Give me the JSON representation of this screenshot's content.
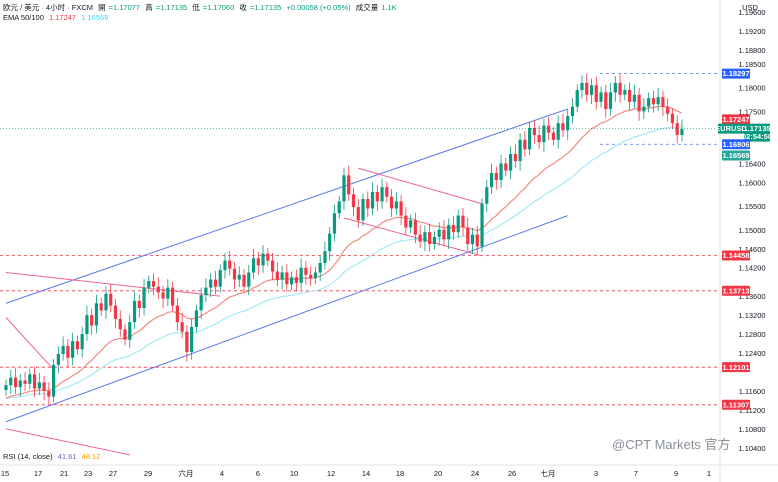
{
  "header": {
    "line1": {
      "symbol": "欧元 / 美元 · 4小时 · FXCM",
      "open_label": "開",
      "open": "=1.17077",
      "high_label": "高",
      "high": "=1.17135",
      "low_label": "低",
      "low": "=1.17060",
      "close_label": "收",
      "close": "=1.17135",
      "change": "+0.00058 (+0.05%)",
      "volume_label": "成交量",
      "volume": "1.1K"
    },
    "line2": {
      "name": "EMA 50/100",
      "ema50": "1.17247",
      "ema100": "1.16569"
    }
  },
  "currency": "USD",
  "rsi_label": {
    "name": "RSI (14, close)",
    "v1": "41.61",
    "v2": "48.12"
  },
  "watermark": "@CPT Markets 官方",
  "colors": {
    "up": "#089981",
    "down": "#f23645",
    "ema50": "#f28b82",
    "ema100": "#a5e9f5",
    "channel": "#5b78e8",
    "down_channel": "#f06292",
    "blue_tag": "#2962ff",
    "red_tag": "#f23645"
  },
  "chart_data": {
    "type": "candlestick",
    "symbol": "EURUSD",
    "timeframe": "4H",
    "ylim": [
      1.101,
      1.1985
    ],
    "y_ticks": [
      "1.19600",
      "1.19200",
      "1.18800",
      "1.18500",
      "1.18000",
      "1.17500",
      "1.16400",
      "1.16000",
      "1.15500",
      "1.15000",
      "1.14600",
      "1.14200",
      "1.13600",
      "1.13200",
      "1.12800",
      "1.12400",
      "1.11600",
      "1.11200",
      "1.10800",
      "1.10400"
    ],
    "x_ticks": [
      "15",
      "17",
      "21",
      "23",
      "27",
      "29",
      "六月",
      "4",
      "6",
      "10",
      "12",
      "14",
      "18",
      "20",
      "24",
      "26",
      "七月",
      "3",
      "7",
      "9",
      "1"
    ],
    "price_tags": [
      {
        "label": "1.18297",
        "value": 1.18297,
        "color": "blue"
      },
      {
        "label": "1.17247",
        "value": 1.17247,
        "color": "red"
      },
      {
        "label": "EURUSD",
        "value": 1.17135,
        "color": "green"
      },
      {
        "label": "1.17135",
        "value": 1.17135,
        "color": "green"
      },
      {
        "label": "02:54:50",
        "value": 1.1699,
        "color": "green"
      },
      {
        "label": "1.16806",
        "value": 1.16806,
        "color": "blue"
      },
      {
        "label": "1.16569",
        "value": 1.16569,
        "color": "teal"
      },
      {
        "label": "1.14458",
        "value": 1.14458,
        "color": "red"
      },
      {
        "label": "1.13713",
        "value": 1.13713,
        "color": "red"
      },
      {
        "label": "1.12101",
        "value": 1.12101,
        "color": "red"
      },
      {
        "label": "1.11307",
        "value": 1.11307,
        "color": "red"
      }
    ],
    "horizontal_levels": [
      {
        "value": 1.18297,
        "color": "blue"
      },
      {
        "value": 1.16806,
        "color": "blue"
      },
      {
        "value": 1.14458,
        "color": "red"
      },
      {
        "value": 1.13713,
        "color": "red"
      },
      {
        "value": 1.12101,
        "color": "red"
      },
      {
        "value": 1.11307,
        "color": "red"
      }
    ],
    "trendlines": [
      {
        "name": "channel-upper",
        "color": "blue",
        "points": [
          [
            0,
            1.1345
          ],
          [
            118,
            1.1755
          ]
        ]
      },
      {
        "name": "channel-lower",
        "color": "blue",
        "points": [
          [
            0,
            1.1095
          ],
          [
            118,
            1.153
          ]
        ]
      },
      {
        "name": "resistance-a",
        "color": "red",
        "points": [
          [
            0,
            1.141
          ],
          [
            45,
            1.136
          ]
        ]
      },
      {
        "name": "resistance-b",
        "color": "red",
        "points": [
          [
            0,
            1.1315
          ],
          [
            10,
            1.1205
          ]
        ]
      },
      {
        "name": "resistance-c",
        "color": "red",
        "points": [
          [
            0,
            1.108
          ],
          [
            26,
            1.1025
          ]
        ]
      },
      {
        "name": "flag-upper",
        "color": "red",
        "points": [
          [
            74,
            1.163
          ],
          [
            100,
            1.1555
          ]
        ]
      },
      {
        "name": "flag-lower",
        "color": "red",
        "points": [
          [
            71,
            1.1525
          ],
          [
            100,
            1.1445
          ]
        ]
      }
    ],
    "candles_close": [
      1.1172,
      1.1188,
      1.1168,
      1.1182,
      1.1175,
      1.1195,
      1.1165,
      1.1178,
      1.116,
      1.1148,
      1.1215,
      1.1238,
      1.1255,
      1.123,
      1.1265,
      1.1248,
      1.128,
      1.132,
      1.1298,
      1.1345,
      1.133,
      1.1365,
      1.134,
      1.1312,
      1.129,
      1.1268,
      1.1305,
      1.135,
      1.1335,
      1.1378,
      1.1392,
      1.138,
      1.1368,
      1.1355,
      1.1378,
      1.134,
      1.1305,
      1.1285,
      1.1242,
      1.1295,
      1.133,
      1.1362,
      1.1378,
      1.1395,
      1.138,
      1.1415,
      1.1435,
      1.1418,
      1.1395,
      1.1405,
      1.138,
      1.141,
      1.144,
      1.1425,
      1.145,
      1.1435,
      1.1412,
      1.1395,
      1.141,
      1.1385,
      1.14,
      1.1388,
      1.142,
      1.1405,
      1.1398,
      1.141,
      1.143,
      1.1455,
      1.1492,
      1.1535,
      1.156,
      1.1615,
      1.1575,
      1.1548,
      1.152,
      1.1565,
      1.1545,
      1.158,
      1.156,
      1.159,
      1.157,
      1.1545,
      1.156,
      1.153,
      1.1505,
      1.152,
      1.149,
      1.1475,
      1.1495,
      1.147,
      1.1485,
      1.15,
      1.148,
      1.151,
      1.1495,
      1.153,
      1.1505,
      1.147,
      1.149,
      1.1465,
      1.1555,
      1.159,
      1.162,
      1.1605,
      1.164,
      1.1625,
      1.166,
      1.1645,
      1.169,
      1.167,
      1.1715,
      1.17,
      1.1685,
      1.172,
      1.1705,
      1.169,
      1.1725,
      1.171,
      1.174,
      1.176,
      1.1795,
      1.181,
      1.1785,
      1.1805,
      1.177,
      1.179,
      1.1755,
      1.179,
      1.181,
      1.1785,
      1.1795,
      1.177,
      1.1785,
      1.175,
      1.176,
      1.1778,
      1.1765,
      1.178,
      1.176,
      1.1745,
      1.1725,
      1.17,
      1.1713
    ],
    "ema50_last": 1.17247,
    "ema100_last": 1.16569
  }
}
